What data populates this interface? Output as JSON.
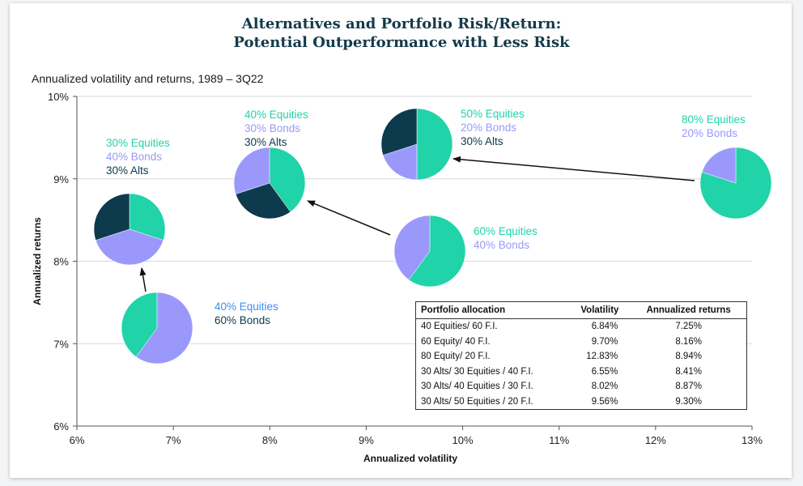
{
  "title_line1": "Alternatives and Portfolio Risk/Return:",
  "title_line2": "Potential Outperformance with Less Risk",
  "subtitle": "Annualized volatility and returns, 1989 – 3Q22",
  "colors": {
    "equities": "#20d3a8",
    "bonds": "#9a99fb",
    "alts": "#0d3a4c",
    "grid": "#d9d9d9",
    "title": "#143a4a"
  },
  "chart_data": {
    "type": "scatter",
    "xlabel": "Annualized volatility",
    "ylabel": "Annualized returns",
    "xlim": [
      6,
      13
    ],
    "ylim": [
      6,
      10
    ],
    "x_ticks": [
      "6%",
      "7%",
      "8%",
      "9%",
      "10%",
      "11%",
      "12%",
      "13%"
    ],
    "y_ticks": [
      "6%",
      "7%",
      "8%",
      "9%",
      "10%"
    ],
    "grid": "horizontal",
    "points": [
      {
        "label": "40 Equities/ 60 F.I.",
        "x": 6.84,
        "y": 7.25,
        "slices": {
          "equities": 40,
          "bonds": 60,
          "alts": 0
        },
        "legend": [
          {
            "text": "40% Equities",
            "key": "equities_alt"
          },
          {
            "text": "60% Bonds",
            "key": "alts"
          }
        ]
      },
      {
        "label": "60 Equity/ 40 F.I.",
        "x": 9.7,
        "y": 8.16,
        "slices": {
          "equities": 60,
          "bonds": 40,
          "alts": 0
        },
        "legend": [
          {
            "text": "60% Equities",
            "key": "equities"
          },
          {
            "text": "40% Bonds",
            "key": "bonds"
          }
        ]
      },
      {
        "label": "80 Equity/ 20 F.I.",
        "x": 12.83,
        "y": 8.94,
        "slices": {
          "equities": 80,
          "bonds": 20,
          "alts": 0
        },
        "legend": [
          {
            "text": "80% Equities",
            "key": "equities"
          },
          {
            "text": "20% Bonds",
            "key": "bonds"
          }
        ]
      },
      {
        "label": "30 Alts/ 30 Equities / 40 F.I.",
        "x": 6.55,
        "y": 8.41,
        "slices": {
          "equities": 30,
          "bonds": 40,
          "alts": 30
        },
        "legend": [
          {
            "text": "30% Equities",
            "key": "equities"
          },
          {
            "text": "40% Bonds",
            "key": "bonds"
          },
          {
            "text": "30% Alts",
            "key": "alts"
          }
        ]
      },
      {
        "label": "30 Alts/ 40 Equities / 30 F.I.",
        "x": 8.02,
        "y": 8.87,
        "slices": {
          "equities": 40,
          "bonds": 30,
          "alts": 30
        },
        "legend": [
          {
            "text": "40% Equities",
            "key": "equities"
          },
          {
            "text": "30% Bonds",
            "key": "bonds"
          },
          {
            "text": "30% Alts",
            "key": "alts"
          }
        ]
      },
      {
        "label": "30 Alts/ 50 Equities / 20 F.I.",
        "x": 9.56,
        "y": 9.3,
        "slices": {
          "equities": 50,
          "bonds": 20,
          "alts": 30
        },
        "legend": [
          {
            "text": "50% Equities",
            "key": "equities"
          },
          {
            "text": "20% Bonds",
            "key": "bonds"
          },
          {
            "text": "30% Alts",
            "key": "alts"
          }
        ]
      }
    ],
    "table": {
      "headers": [
        "Portfolio allocation",
        "Volatility",
        "Annualized returns"
      ],
      "rows": [
        [
          "40 Equities/ 60 F.I.",
          "6.84%",
          "7.25%"
        ],
        [
          "60 Equity/ 40 F.I.",
          "9.70%",
          "8.16%"
        ],
        [
          "80 Equity/ 20 F.I.",
          "12.83%",
          "8.94%"
        ],
        [
          "30 Alts/ 30 Equities / 40 F.I.",
          "6.55%",
          "8.41%"
        ],
        [
          "30 Alts/ 40 Equities / 30 F.I.",
          "8.02%",
          "8.87%"
        ],
        [
          "30 Alts/ 50 Equities / 20 F.I.",
          "9.56%",
          "9.30%"
        ]
      ]
    }
  }
}
